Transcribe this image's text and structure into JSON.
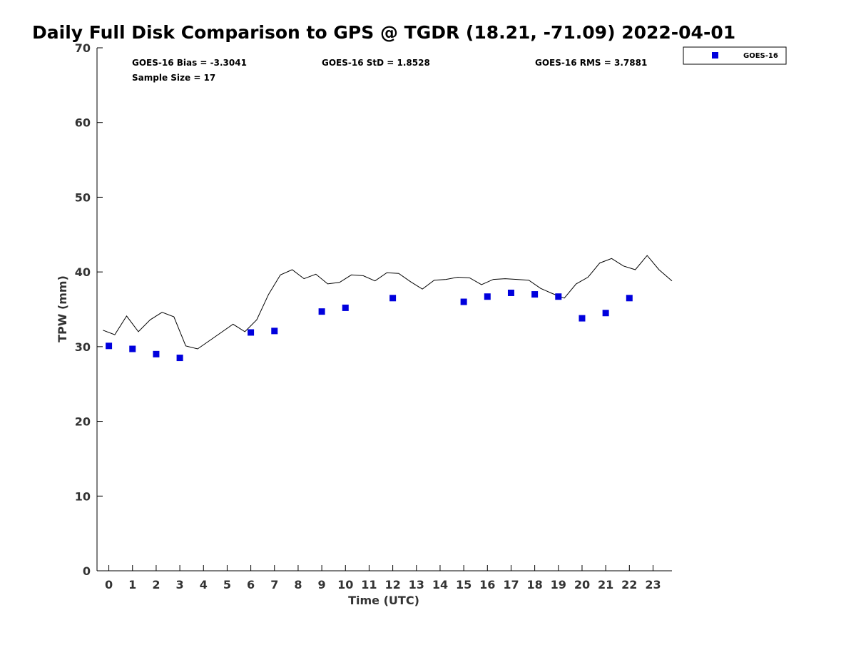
{
  "chart_data": {
    "type": "scatter",
    "title": "Daily Full Disk Comparison to GPS @ TGDR (18.21, -71.09) 2022-04-01",
    "xlabel": "Time (UTC)",
    "ylabel": "TPW (mm)",
    "xlim": [
      -0.5,
      23.8
    ],
    "ylim": [
      0,
      70
    ],
    "x_ticks": [
      0,
      1,
      2,
      3,
      4,
      5,
      6,
      7,
      8,
      9,
      10,
      11,
      12,
      13,
      14,
      15,
      16,
      17,
      18,
      19,
      20,
      21,
      22,
      23
    ],
    "x_tick_labels": [
      "0",
      "1",
      "2",
      "3",
      "4",
      "5",
      "6",
      "7",
      "8",
      "9",
      "10",
      "11",
      "12",
      "13",
      "14",
      "15",
      "16",
      "17",
      "18",
      "19",
      "20",
      "21",
      "22",
      "23"
    ],
    "y_ticks": [
      0,
      10,
      20,
      30,
      40,
      50,
      60,
      70
    ],
    "y_tick_labels": [
      "0",
      "10",
      "20",
      "30",
      "40",
      "50",
      "60",
      "70"
    ],
    "grid": false,
    "legend_position": "outside-top-right",
    "stats": {
      "bias": "GOES-16 Bias = -3.3041",
      "std": "GOES-16 StD = 1.8528",
      "rms": "GOES-16 RMS = 3.7881",
      "sample_size": "Sample Size = 17"
    },
    "series": [
      {
        "name": "GOES-16",
        "kind": "scatter",
        "marker": "square",
        "color": "#0000dd",
        "x": [
          0,
          1,
          2,
          3,
          6,
          7,
          9,
          10,
          12,
          15,
          16,
          17,
          18,
          19,
          20,
          21,
          22
        ],
        "y": [
          30.1,
          29.7,
          29.0,
          28.5,
          31.9,
          32.1,
          34.7,
          35.2,
          36.5,
          36.0,
          36.7,
          37.2,
          37.0,
          36.7,
          33.8,
          34.5,
          36.5
        ]
      },
      {
        "kind": "line",
        "color": "#000000",
        "x": [
          -0.25,
          0.25,
          0.75,
          1.25,
          1.75,
          2.25,
          2.75,
          3.25,
          3.75,
          4.25,
          4.75,
          5.25,
          5.75,
          6.25,
          6.75,
          7.25,
          7.75,
          8.25,
          8.75,
          9.25,
          9.75,
          10.25,
          10.75,
          11.25,
          11.75,
          12.25,
          12.75,
          13.25,
          13.75,
          14.25,
          14.75,
          15.25,
          15.75,
          16.25,
          16.75,
          17.25,
          17.75,
          18.25,
          18.75,
          19.25,
          19.75,
          20.25,
          20.75,
          21.25,
          21.75,
          22.25,
          22.75,
          23.25,
          23.8
        ],
        "y": [
          32.2,
          31.6,
          34.1,
          32.0,
          33.6,
          34.6,
          34.0,
          30.1,
          29.7,
          30.8,
          31.9,
          33.0,
          32.0,
          33.6,
          37.0,
          39.6,
          40.3,
          39.1,
          39.7,
          38.4,
          38.6,
          39.6,
          39.5,
          38.8,
          39.9,
          39.8,
          38.7,
          37.7,
          38.9,
          39.0,
          39.3,
          39.2,
          38.3,
          39.0,
          39.1,
          39.0,
          38.9,
          37.8,
          37.1,
          36.5,
          38.4,
          39.3,
          41.2,
          41.8,
          40.8,
          40.3,
          42.2,
          40.3,
          38.8
        ]
      }
    ]
  }
}
